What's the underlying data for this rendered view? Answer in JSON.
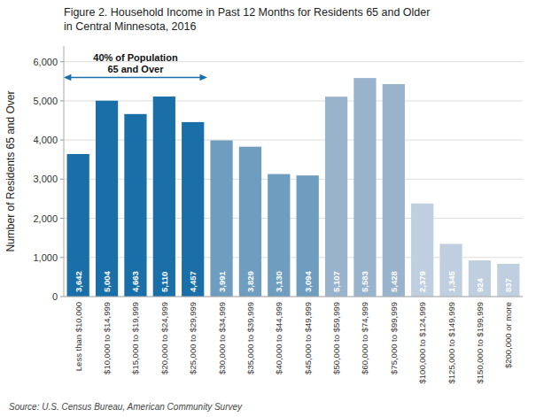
{
  "chart_data": {
    "type": "bar",
    "title": "Figure 2. Household Income in Past 12 Months for Residents 65 and Older\nin Central Minnesota, 2016",
    "ylabel": "Number of Residents 65 and Over",
    "source": "Source: U.S. Census Bureau, American Community Survey",
    "categories": [
      "Less than $10,000",
      "$10,000 to $14,999",
      "$15,000 to $19,999",
      "$20,000 to $24,999",
      "$25,000 to $29,999",
      "$30,000 to $34,999",
      "$35,000 to $39,999",
      "$40,000 to $44,999",
      "$45,000 to $49,999",
      "$50,000 to $59,999",
      "$60,000 to $74,999",
      "$75,000 to $99,999",
      "$100,000 to $124,999",
      "$125,000 to $149,999",
      "$150,000 to $199,999",
      "$200,000 or more"
    ],
    "values": [
      3642,
      5004,
      4663,
      5110,
      4457,
      3991,
      3829,
      3130,
      3094,
      5107,
      5583,
      5428,
      2379,
      1345,
      924,
      837
    ],
    "value_labels": [
      "3,642",
      "5,004",
      "4,663",
      "5,110",
      "4,457",
      "3,991",
      "3,829",
      "3,130",
      "3,094",
      "5,107",
      "5,583",
      "5,428",
      "2,379",
      "1,345",
      "924",
      "837"
    ],
    "colors": [
      "#1b6fa8",
      "#1b6fa8",
      "#1b6fa8",
      "#1b6fa8",
      "#1b6fa8",
      "#6e9dbf",
      "#6e9dbf",
      "#6e9dbf",
      "#6e9dbf",
      "#9ab3cd",
      "#9ab3cd",
      "#9ab3cd",
      "#bfcfdf",
      "#bfcfdf",
      "#bfcfdf",
      "#bfcfdf"
    ],
    "ylim": [
      0,
      6400
    ],
    "yticks": [
      0,
      {
        "value": 1000,
        "label": "1,000"
      },
      {
        "value": 2000,
        "label": "2,000"
      },
      {
        "value": 3000,
        "label": "3,000"
      },
      {
        "value": 4000,
        "label": "4,000"
      },
      {
        "value": 5000,
        "label": "5,000"
      },
      {
        "value": 6000,
        "label": "6,000"
      }
    ],
    "grid": true,
    "data_labels": true,
    "annotations": [
      {
        "text": "40% of Population\n65 and Over",
        "from": "Less than $10,000",
        "to": "$25,000 to $29,999",
        "y": 5600
      }
    ]
  }
}
